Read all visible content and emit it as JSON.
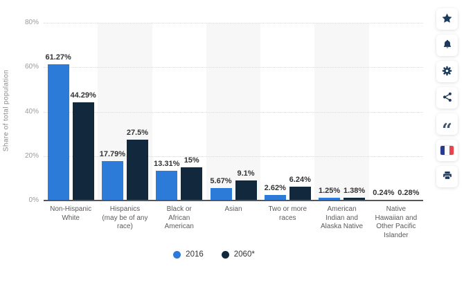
{
  "chart_data": {
    "type": "bar",
    "title": "",
    "ylabel": "Share of total population",
    "ylim": [
      0,
      80
    ],
    "yticks": [
      0,
      20,
      40,
      60,
      80
    ],
    "ytick_labels": [
      "0%",
      "20%",
      "40%",
      "60%",
      "80%"
    ],
    "grid": "horizontal-dotted",
    "legend_position": "bottom",
    "band_fill_alternate": "#f7f7f7",
    "categories": [
      "Non-Hispanic White",
      "Hispanics (may be of any race)",
      "Black or African American",
      "Asian",
      "Two or more races",
      "American Indian and Alaska Native",
      "Native Hawaiian and Other Pacific Islander"
    ],
    "category_label_lines": [
      [
        "Non-Hispanic",
        "White"
      ],
      [
        "Hispanics",
        "(may be of any",
        "race)"
      ],
      [
        "Black or",
        "African",
        "American"
      ],
      [
        "Asian"
      ],
      [
        "Two or more",
        "races"
      ],
      [
        "American",
        "Indian and",
        "Alaska Native"
      ],
      [
        "Native",
        "Hawaiian and",
        "Other Pacific",
        "Islander"
      ]
    ],
    "series": [
      {
        "name": "2016",
        "color": "#2C7BD8",
        "values": [
          61.27,
          17.79,
          13.31,
          5.67,
          2.62,
          1.25,
          0.24
        ],
        "labels": [
          "61.27%",
          "17.79%",
          "13.31%",
          "5.67%",
          "2.62%",
          "1.25%",
          "0.24%"
        ]
      },
      {
        "name": "2060*",
        "color": "#12293D",
        "values": [
          44.29,
          27.5,
          15,
          9.1,
          6.24,
          1.38,
          0.28
        ],
        "labels": [
          "44.29%",
          "27.5%",
          "15%",
          "9.1%",
          "6.24%",
          "1.38%",
          "0.28%"
        ]
      }
    ]
  },
  "colors": {
    "axis_line": "#55565a",
    "grid_line": "#dadada",
    "tick_text": "#9a9a9a",
    "category_text": "#5a5a5a",
    "value_text": "#333333",
    "icon_navy": "#1d3a5c",
    "flag_blue": "#2A3A8C",
    "flag_red": "#E8444D"
  },
  "sidebar": {
    "buttons": [
      {
        "name": "favorite",
        "icon": "star-icon"
      },
      {
        "name": "notifications",
        "icon": "bell-icon"
      },
      {
        "name": "settings",
        "icon": "gear-icon"
      },
      {
        "name": "share",
        "icon": "share-icon"
      },
      {
        "name": "cite",
        "icon": "quote-icon"
      },
      {
        "name": "language",
        "icon": "french-flag-icon"
      },
      {
        "name": "print",
        "icon": "printer-icon"
      }
    ]
  }
}
